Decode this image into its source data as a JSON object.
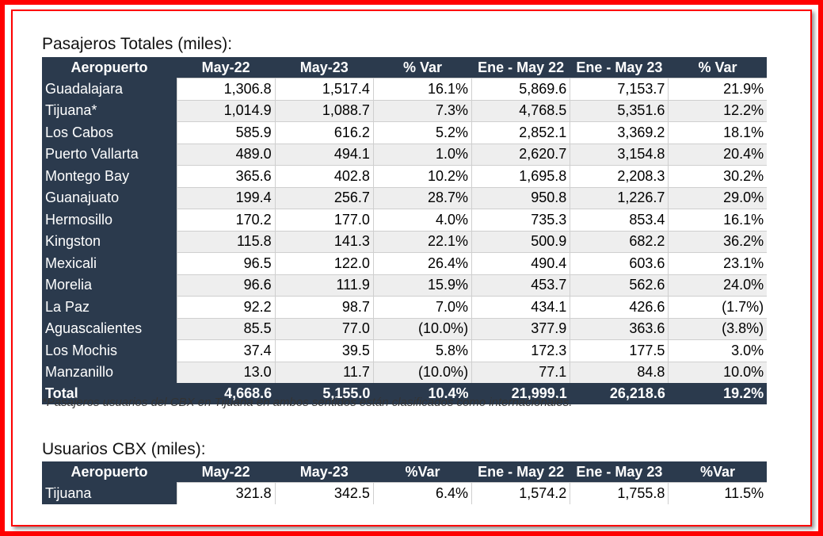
{
  "section1": {
    "title": "Pasajeros Totales (miles):",
    "headers": [
      "Aeropuerto",
      "May-22",
      "May-23",
      "% Var",
      "Ene - May 22",
      "Ene - May 23",
      "% Var"
    ],
    "rows": [
      [
        "Guadalajara",
        "1,306.8",
        "1,517.4",
        "16.1%",
        "5,869.6",
        "7,153.7",
        "21.9%"
      ],
      [
        "Tijuana*",
        "1,014.9",
        "1,088.7",
        "7.3%",
        "4,768.5",
        "5,351.6",
        "12.2%"
      ],
      [
        "Los Cabos",
        "585.9",
        "616.2",
        "5.2%",
        "2,852.1",
        "3,369.2",
        "18.1%"
      ],
      [
        "Puerto Vallarta",
        "489.0",
        "494.1",
        "1.0%",
        "2,620.7",
        "3,154.8",
        "20.4%"
      ],
      [
        "Montego Bay",
        "365.6",
        "402.8",
        "10.2%",
        "1,695.8",
        "2,208.3",
        "30.2%"
      ],
      [
        "Guanajuato",
        "199.4",
        "256.7",
        "28.7%",
        "950.8",
        "1,226.7",
        "29.0%"
      ],
      [
        "Hermosillo",
        "170.2",
        "177.0",
        "4.0%",
        "735.3",
        "853.4",
        "16.1%"
      ],
      [
        "Kingston",
        "115.8",
        "141.3",
        "22.1%",
        "500.9",
        "682.2",
        "36.2%"
      ],
      [
        "Mexicali",
        "96.5",
        "122.0",
        "26.4%",
        "490.4",
        "603.6",
        "23.1%"
      ],
      [
        "Morelia",
        "96.6",
        "111.9",
        "15.9%",
        "453.7",
        "562.6",
        "24.0%"
      ],
      [
        "La Paz",
        "92.2",
        "98.7",
        "7.0%",
        "434.1",
        "426.6",
        "(1.7%)"
      ],
      [
        "Aguascalientes",
        "85.5",
        "77.0",
        "(10.0%)",
        "377.9",
        "363.6",
        "(3.8%)"
      ],
      [
        "Los Mochis",
        "37.4",
        "39.5",
        "5.8%",
        "172.3",
        "177.5",
        "3.0%"
      ],
      [
        "Manzanillo",
        "13.0",
        "11.7",
        "(10.0%)",
        "77.1",
        "84.8",
        "10.0%"
      ]
    ],
    "total": [
      "Total",
      "4,668.6",
      "5,155.0",
      "10.4%",
      "21,999.1",
      "26,218.6",
      "19.2%"
    ],
    "note": "*Pasajeros usuarios del CBX en Tijuana en ambos sentidos están clasificados como internacionales."
  },
  "section2": {
    "title": "Usuarios CBX (miles):",
    "headers": [
      "Aeropuerto",
      "May-22",
      "May-23",
      "%Var",
      "Ene - May 22",
      "Ene - May 23",
      "%Var"
    ],
    "rows": [
      [
        "Tijuana",
        "321.8",
        "342.5",
        "6.4%",
        "1,574.2",
        "1,755.8",
        "11.5%"
      ]
    ]
  },
  "colors": {
    "header_bg": "#2b3a4d",
    "frame": "#ff0000",
    "stripe": "#eeeeee"
  }
}
